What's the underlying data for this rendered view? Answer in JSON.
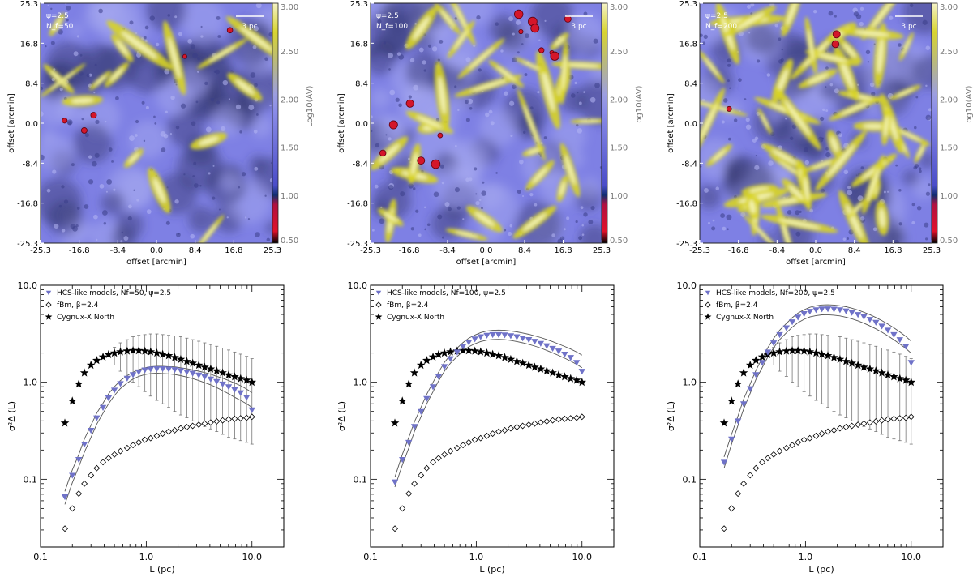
{
  "colors": {
    "map_base": "#7e80e4",
    "map_dark": "#30346a",
    "filament": "#d8d424",
    "clump": "#d4162a",
    "model_marker": "#6f72c8",
    "grid_line": "#555555"
  },
  "chart_data": [
    {
      "type": "heatmap",
      "panel": "map-1",
      "params": {
        "psi": "ψ=2.5",
        "nf": "N_f=50"
      },
      "scale_bar": "3 pc",
      "xlabel": "offset [arcmin]",
      "ylabel": "offset [arcmin]",
      "x_ticks": [
        "-25.3",
        "-16.8",
        "-8.4",
        "0.0",
        "8.4",
        "16.8",
        "25.3"
      ],
      "y_ticks": [
        "25.3",
        "16.8",
        "8.4",
        "0.0",
        "-8.4",
        "-16.8",
        "-25.3"
      ],
      "xlim": [
        -25.3,
        25.3
      ],
      "ylim": [
        -25.3,
        25.3
      ],
      "colorbar": {
        "label": "Log10(AV)",
        "ticks": [
          "3.00",
          "2.50",
          "2.00",
          "1.50",
          "1.00",
          "0.50"
        ],
        "range": [
          0.5,
          3.0
        ]
      },
      "filaments": 16,
      "clumps": 5
    },
    {
      "type": "heatmap",
      "panel": "map-2",
      "params": {
        "psi": "ψ=2.5",
        "nf": "N_f=100"
      },
      "scale_bar": "3 pc",
      "xlabel": "offset [arcmin]",
      "ylabel": "offset [arcmin]",
      "x_ticks": [
        "-25.3",
        "-16.8",
        "-8.4",
        "0.0",
        "8.4",
        "16.8",
        "25.3"
      ],
      "y_ticks": [
        "25.3",
        "16.8",
        "8.4",
        "0.0",
        "-8.4",
        "-16.8",
        "-25.3"
      ],
      "xlim": [
        -25.3,
        25.3
      ],
      "ylim": [
        -25.3,
        25.3
      ],
      "colorbar": {
        "label": "Log10(AV)",
        "ticks": [
          "3.00",
          "2.50",
          "2.00",
          "1.50",
          "1.00",
          "0.50"
        ],
        "range": [
          0.5,
          3.0
        ]
      },
      "filaments": 30,
      "clumps": 14
    },
    {
      "type": "heatmap",
      "panel": "map-3",
      "params": {
        "psi": "ψ=2.5",
        "nf": "N_f=200"
      },
      "scale_bar": "3 pc",
      "xlabel": "offset [arcmin]",
      "ylabel": "offset [arcmin]",
      "x_ticks": [
        "-25.3",
        "-16.8",
        "-8.4",
        "0.0",
        "8.4",
        "16.8",
        "25.3"
      ],
      "y_ticks": [
        "25.3",
        "16.8",
        "8.4",
        "0.0",
        "-8.4",
        "-16.8",
        "-25.3"
      ],
      "xlim": [
        -25.3,
        25.3
      ],
      "ylim": [
        -25.3,
        25.3
      ],
      "colorbar": {
        "label": "Log10(AV)",
        "ticks": [
          "3.00",
          "2.50",
          "2.00",
          "1.50",
          "1.00",
          "0.50"
        ],
        "range": [
          0.5,
          3.0
        ]
      },
      "filaments": 55,
      "clumps": 3
    },
    {
      "type": "scatter",
      "panel": "delta-variance-1",
      "xscale": "log",
      "yscale": "log",
      "xlim": [
        0.1,
        20
      ],
      "ylim": [
        0.02,
        10
      ],
      "xlabel": "L (pc)",
      "ylabel": "σ²Δ (L)",
      "x_ticks": [
        "0.1",
        "1.0",
        "10.0"
      ],
      "y_ticks": [
        "10.0",
        "1.0",
        "0.1"
      ],
      "legend": [
        "HCS-like models, Nf=50, ψ=2.5",
        "fBm, β=2.4",
        "Cygnux-X North"
      ],
      "x": [
        0.17,
        0.2,
        0.23,
        0.26,
        0.3,
        0.34,
        0.39,
        0.44,
        0.5,
        0.57,
        0.66,
        0.75,
        0.85,
        0.97,
        1.1,
        1.26,
        1.43,
        1.63,
        1.86,
        2.12,
        2.42,
        2.75,
        3.14,
        3.57,
        4.07,
        4.64,
        5.28,
        6.02,
        6.86,
        7.81,
        8.9,
        10.0
      ],
      "series": [
        {
          "name": "HCS-like models",
          "marker": "triangle-down",
          "values": [
            0.066,
            0.11,
            0.16,
            0.23,
            0.32,
            0.43,
            0.55,
            0.69,
            0.83,
            0.97,
            1.1,
            1.2,
            1.28,
            1.34,
            1.37,
            1.38,
            1.38,
            1.37,
            1.35,
            1.32,
            1.28,
            1.24,
            1.19,
            1.14,
            1.08,
            1.02,
            0.96,
            0.9,
            0.84,
            0.78,
            0.7,
            0.52
          ],
          "band_upper": [
            0.075,
            0.125,
            0.18,
            0.26,
            0.36,
            0.48,
            0.61,
            0.76,
            0.9,
            1.04,
            1.17,
            1.27,
            1.35,
            1.41,
            1.45,
            1.46,
            1.46,
            1.45,
            1.44,
            1.41,
            1.38,
            1.34,
            1.3,
            1.26,
            1.21,
            1.15,
            1.1,
            1.04,
            0.98,
            0.92,
            0.85,
            0.78
          ],
          "band_lower": [
            0.055,
            0.092,
            0.135,
            0.19,
            0.27,
            0.37,
            0.48,
            0.6,
            0.73,
            0.86,
            0.98,
            1.08,
            1.15,
            1.2,
            1.23,
            1.24,
            1.23,
            1.22,
            1.2,
            1.17,
            1.13,
            1.09,
            1.04,
            0.99,
            0.94,
            0.88,
            0.82,
            0.76,
            0.7,
            0.65,
            0.6,
            0.55
          ]
        },
        {
          "name": "fBm",
          "marker": "diamond",
          "values": [
            0.031,
            0.05,
            0.071,
            0.09,
            0.11,
            0.13,
            0.15,
            0.165,
            0.18,
            0.195,
            0.21,
            0.225,
            0.24,
            0.255,
            0.265,
            0.28,
            0.295,
            0.31,
            0.32,
            0.335,
            0.345,
            0.355,
            0.365,
            0.375,
            0.385,
            0.395,
            0.405,
            0.415,
            0.42,
            0.425,
            0.43,
            0.44
          ]
        },
        {
          "name": "Cygnux-X North",
          "marker": "star",
          "values": [
            0.38,
            0.64,
            0.96,
            1.25,
            1.5,
            1.68,
            1.82,
            1.93,
            2.0,
            2.06,
            2.1,
            2.12,
            2.12,
            2.1,
            2.06,
            2.0,
            1.94,
            1.88,
            1.8,
            1.72,
            1.64,
            1.57,
            1.5,
            1.43,
            1.37,
            1.31,
            1.25,
            1.19,
            1.14,
            1.09,
            1.05,
            1.0
          ],
          "err_upper": [
            0.38,
            0.64,
            0.96,
            1.25,
            1.5,
            1.68,
            1.82,
            1.93,
            2.3,
            2.55,
            2.75,
            2.95,
            3.05,
            3.1,
            3.15,
            3.15,
            3.1,
            3.05,
            3.0,
            2.95,
            2.85,
            2.75,
            2.65,
            2.55,
            2.45,
            2.35,
            2.25,
            2.15,
            2.05,
            1.95,
            1.85,
            1.75
          ],
          "err_lower": [
            0.38,
            0.64,
            0.96,
            1.25,
            1.5,
            1.68,
            1.82,
            1.93,
            1.5,
            1.3,
            1.15,
            1.0,
            0.9,
            0.8,
            0.72,
            0.65,
            0.6,
            0.55,
            0.5,
            0.46,
            0.43,
            0.4,
            0.37,
            0.35,
            0.33,
            0.31,
            0.29,
            0.27,
            0.26,
            0.25,
            0.24,
            0.23
          ]
        }
      ]
    },
    {
      "type": "scatter",
      "panel": "delta-variance-2",
      "xscale": "log",
      "yscale": "log",
      "xlim": [
        0.1,
        20
      ],
      "ylim": [
        0.02,
        10
      ],
      "xlabel": "L (pc)",
      "ylabel": "σ²Δ (L)",
      "x_ticks": [
        "0.1",
        "1.0",
        "10.0"
      ],
      "y_ticks": [
        "10.0",
        "1.0",
        "0.1"
      ],
      "legend": [
        "HCS-like models, Nf=100, ψ=2.5",
        "fBm, β=2.4",
        "Cygnux-X North"
      ],
      "x": [
        0.17,
        0.2,
        0.23,
        0.26,
        0.3,
        0.34,
        0.39,
        0.44,
        0.5,
        0.57,
        0.66,
        0.75,
        0.85,
        0.97,
        1.1,
        1.26,
        1.43,
        1.63,
        1.86,
        2.12,
        2.42,
        2.75,
        3.14,
        3.57,
        4.07,
        4.64,
        5.28,
        6.02,
        6.86,
        7.81,
        8.9,
        10.0
      ],
      "series": [
        {
          "name": "HCS-like models",
          "marker": "triangle-down",
          "values": [
            0.094,
            0.16,
            0.24,
            0.35,
            0.5,
            0.68,
            0.9,
            1.15,
            1.45,
            1.75,
            2.05,
            2.35,
            2.6,
            2.8,
            2.95,
            3.05,
            3.1,
            3.1,
            3.08,
            3.02,
            2.95,
            2.86,
            2.76,
            2.65,
            2.52,
            2.38,
            2.24,
            2.1,
            1.95,
            1.8,
            1.6,
            1.3
          ],
          "band_upper": [
            0.105,
            0.18,
            0.27,
            0.39,
            0.55,
            0.75,
            1.0,
            1.27,
            1.6,
            1.92,
            2.25,
            2.57,
            2.85,
            3.07,
            3.25,
            3.37,
            3.43,
            3.45,
            3.43,
            3.38,
            3.31,
            3.22,
            3.12,
            3.01,
            2.89,
            2.76,
            2.62,
            2.48,
            2.34,
            2.2,
            2.05,
            1.9
          ],
          "band_lower": [
            0.083,
            0.14,
            0.21,
            0.31,
            0.44,
            0.6,
            0.8,
            1.03,
            1.3,
            1.57,
            1.84,
            2.1,
            2.32,
            2.5,
            2.63,
            2.72,
            2.76,
            2.77,
            2.75,
            2.7,
            2.63,
            2.55,
            2.46,
            2.36,
            2.25,
            2.13,
            2.01,
            1.89,
            1.77,
            1.65,
            1.53,
            1.41
          ]
        },
        {
          "name": "fBm",
          "marker": "diamond",
          "values": [
            0.031,
            0.05,
            0.071,
            0.09,
            0.11,
            0.13,
            0.15,
            0.165,
            0.18,
            0.195,
            0.21,
            0.225,
            0.24,
            0.255,
            0.265,
            0.28,
            0.295,
            0.31,
            0.32,
            0.335,
            0.345,
            0.355,
            0.365,
            0.375,
            0.385,
            0.395,
            0.405,
            0.415,
            0.42,
            0.425,
            0.43,
            0.44
          ]
        },
        {
          "name": "Cygnux-X North",
          "marker": "star",
          "values": [
            0.38,
            0.64,
            0.96,
            1.25,
            1.5,
            1.68,
            1.82,
            1.93,
            2.0,
            2.06,
            2.1,
            2.12,
            2.12,
            2.1,
            2.06,
            2.0,
            1.94,
            1.88,
            1.8,
            1.72,
            1.64,
            1.57,
            1.5,
            1.43,
            1.37,
            1.31,
            1.25,
            1.19,
            1.14,
            1.09,
            1.05,
            1.0
          ]
        }
      ]
    },
    {
      "type": "scatter",
      "panel": "delta-variance-3",
      "xscale": "log",
      "yscale": "log",
      "xlim": [
        0.1,
        20
      ],
      "ylim": [
        0.02,
        10
      ],
      "xlabel": "L (pc)",
      "ylabel": "σ²Δ (L)",
      "x_ticks": [
        "0.1",
        "1.0",
        "10.0"
      ],
      "y_ticks": [
        "10.0",
        "1.0",
        "0.1"
      ],
      "legend": [
        "HCS-like models, Nf=200, ψ=2.5",
        "fBm, β=2.4",
        "Cygnux-X North"
      ],
      "x": [
        0.17,
        0.2,
        0.23,
        0.26,
        0.3,
        0.34,
        0.39,
        0.44,
        0.5,
        0.57,
        0.66,
        0.75,
        0.85,
        0.97,
        1.1,
        1.26,
        1.43,
        1.63,
        1.86,
        2.12,
        2.42,
        2.75,
        3.14,
        3.57,
        4.07,
        4.64,
        5.28,
        6.02,
        6.86,
        7.81,
        8.9,
        10.0
      ],
      "series": [
        {
          "name": "HCS-like models",
          "marker": "triangle-down",
          "values": [
            0.15,
            0.26,
            0.4,
            0.6,
            0.86,
            1.2,
            1.6,
            2.05,
            2.55,
            3.1,
            3.65,
            4.2,
            4.7,
            5.1,
            5.4,
            5.6,
            5.7,
            5.72,
            5.68,
            5.6,
            5.45,
            5.25,
            5.0,
            4.75,
            4.45,
            4.15,
            3.8,
            3.45,
            3.1,
            2.75,
            2.35,
            1.6
          ],
          "band_upper": [
            0.17,
            0.29,
            0.45,
            0.67,
            0.96,
            1.33,
            1.77,
            2.27,
            2.83,
            3.43,
            4.03,
            4.63,
            5.17,
            5.6,
            5.93,
            6.15,
            6.26,
            6.29,
            6.25,
            6.15,
            6.0,
            5.8,
            5.55,
            5.27,
            4.97,
            4.65,
            4.32,
            3.98,
            3.64,
            3.3,
            2.97,
            2.65
          ],
          "band_lower": [
            0.13,
            0.23,
            0.36,
            0.53,
            0.77,
            1.07,
            1.42,
            1.82,
            2.27,
            2.75,
            3.23,
            3.7,
            4.12,
            4.46,
            4.71,
            4.87,
            4.95,
            4.96,
            4.92,
            4.83,
            4.69,
            4.51,
            4.3,
            4.06,
            3.81,
            3.55,
            3.28,
            3.01,
            2.74,
            2.48,
            2.23,
            1.99
          ]
        },
        {
          "name": "fBm",
          "marker": "diamond",
          "values": [
            0.031,
            0.05,
            0.071,
            0.09,
            0.11,
            0.13,
            0.15,
            0.165,
            0.18,
            0.195,
            0.21,
            0.225,
            0.24,
            0.255,
            0.265,
            0.28,
            0.295,
            0.31,
            0.32,
            0.335,
            0.345,
            0.355,
            0.365,
            0.375,
            0.385,
            0.395,
            0.405,
            0.415,
            0.42,
            0.425,
            0.43,
            0.44
          ]
        },
        {
          "name": "Cygnux-X North",
          "marker": "star",
          "values": [
            0.38,
            0.64,
            0.96,
            1.25,
            1.5,
            1.68,
            1.82,
            1.93,
            2.0,
            2.06,
            2.1,
            2.12,
            2.12,
            2.1,
            2.06,
            2.0,
            1.94,
            1.88,
            1.8,
            1.72,
            1.64,
            1.57,
            1.5,
            1.43,
            1.37,
            1.31,
            1.25,
            1.19,
            1.14,
            1.09,
            1.05,
            1.0
          ],
          "err_upper": [
            0.38,
            0.64,
            0.96,
            1.25,
            1.5,
            1.68,
            1.82,
            1.93,
            2.3,
            2.55,
            2.75,
            2.95,
            3.05,
            3.1,
            3.15,
            3.15,
            3.1,
            3.05,
            3.0,
            2.95,
            2.85,
            2.75,
            2.65,
            2.55,
            2.45,
            2.35,
            2.25,
            2.15,
            2.05,
            1.95,
            1.85,
            1.75
          ],
          "err_lower": [
            0.38,
            0.64,
            0.96,
            1.25,
            1.5,
            1.68,
            1.82,
            1.93,
            1.5,
            1.3,
            1.15,
            1.0,
            0.9,
            0.8,
            0.72,
            0.65,
            0.6,
            0.55,
            0.5,
            0.46,
            0.43,
            0.4,
            0.37,
            0.35,
            0.33,
            0.31,
            0.29,
            0.27,
            0.26,
            0.25,
            0.24,
            0.23
          ]
        }
      ]
    }
  ]
}
